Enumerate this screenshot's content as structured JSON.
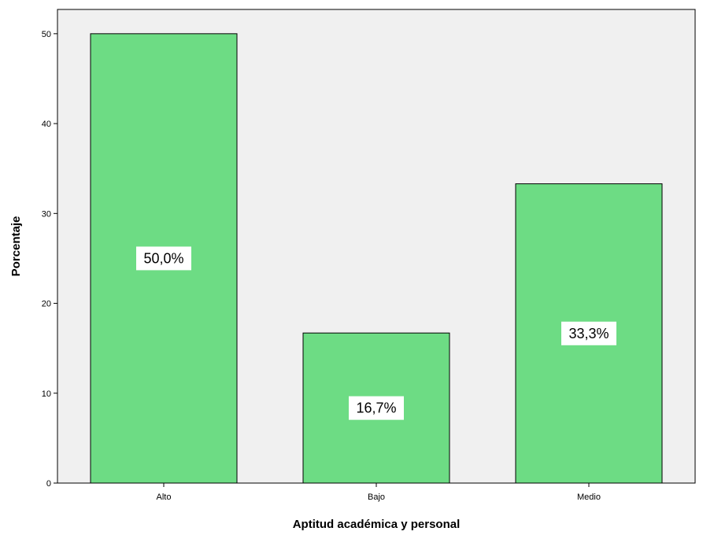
{
  "chart_data": {
    "type": "bar",
    "title": "",
    "xlabel": "Aptitud académica y personal",
    "ylabel": "Porcentaje",
    "categories": [
      "Alto",
      "Bajo",
      "Medio"
    ],
    "values": [
      50.0,
      16.7,
      33.3
    ],
    "data_labels": [
      "50,0%",
      "16,7%",
      "33,3%"
    ],
    "ylim": [
      0,
      52.7
    ],
    "yticks": [
      0,
      10,
      20,
      30,
      40,
      50
    ],
    "ytick_labels": [
      "0",
      "10",
      "20",
      "30",
      "40",
      "50"
    ],
    "grid": false,
    "legend": "none"
  },
  "colors": {
    "plot_background": "#f0f0f0",
    "bar_fill": "#6ddc84",
    "bar_stroke": "#000000",
    "axis": "#000000",
    "label_box": "#ffffff"
  }
}
